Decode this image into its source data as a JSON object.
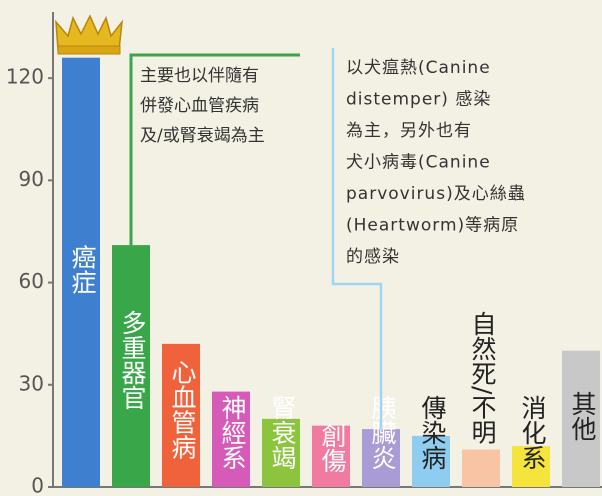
{
  "chart_data": {
    "type": "bar",
    "categories": [
      "癌症",
      "多重器官",
      "心血管病",
      "神經系",
      "腎衰竭",
      "創傷",
      "胰臟炎",
      "傳染病",
      "自然死/不明",
      "消化系",
      "其他"
    ],
    "values": [
      126,
      71,
      42,
      28,
      20,
      18,
      17,
      15,
      11,
      12,
      40
    ],
    "colors": [
      "#3f7fcf",
      "#3aa64a",
      "#f0623c",
      "#d65ab8",
      "#8cc43e",
      "#f07aa0",
      "#a99bd6",
      "#8fcdf0",
      "#f7c4a4",
      "#f4e43c",
      "#c8c8c8"
    ],
    "ylim": [
      0,
      140
    ],
    "yticks": [
      0,
      30,
      60,
      90,
      120
    ],
    "annotations": [
      {
        "lines": [
          "主要也以伴隨有",
          "併發心血管疾病",
          "及/或腎衰竭為主"
        ],
        "color": "#3aa64a"
      },
      {
        "lines": [
          "以犬瘟熱(Canine",
          "distemper) 感染",
          "為主，另外也有",
          "犬小病毒(Canine",
          "parvovirus)及心絲蟲",
          "(Heartworm)等病原",
          "的感染"
        ],
        "color": "#9fd4f2"
      }
    ]
  }
}
